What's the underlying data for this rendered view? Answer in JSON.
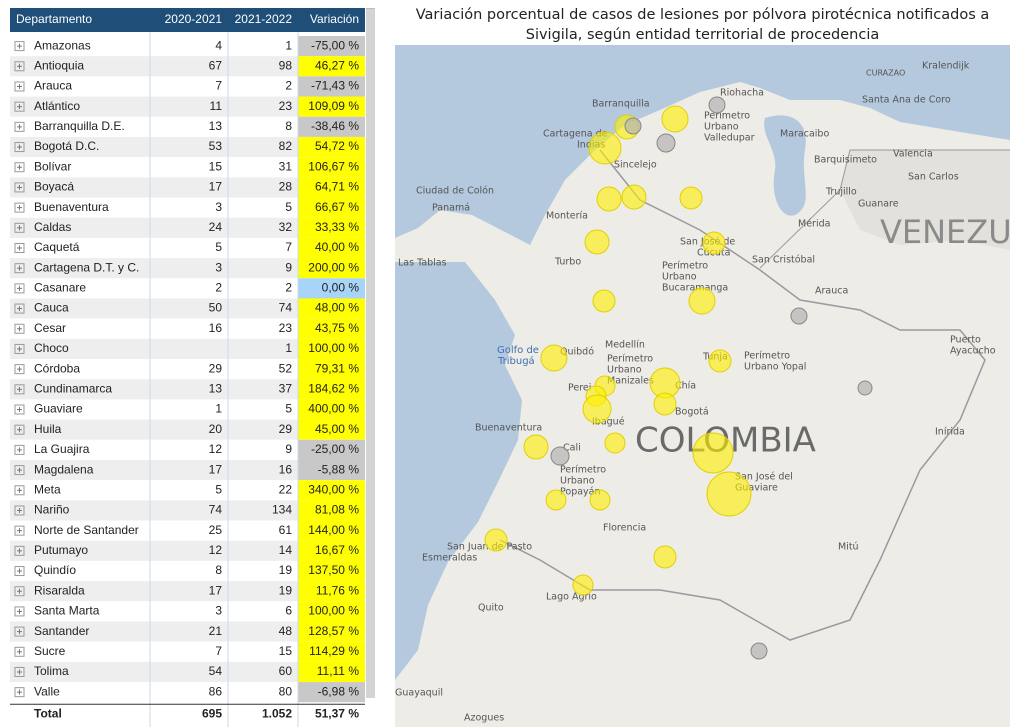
{
  "table": {
    "headers": [
      "Departamento",
      "2020-2021",
      "2021-2022",
      "Variación"
    ],
    "rows": [
      [
        "Amazonas",
        "4",
        "1",
        "-75,00 %"
      ],
      [
        "Antioquia",
        "67",
        "98",
        "46,27 %"
      ],
      [
        "Arauca",
        "7",
        "2",
        "-71,43 %"
      ],
      [
        "Atlántico",
        "11",
        "23",
        "109,09 %"
      ],
      [
        "Barranquilla D.E.",
        "13",
        "8",
        "-38,46 %"
      ],
      [
        "Bogotá D.C.",
        "53",
        "82",
        "54,72 %"
      ],
      [
        "Bolívar",
        "15",
        "31",
        "106,67 %"
      ],
      [
        "Boyacá",
        "17",
        "28",
        "64,71 %"
      ],
      [
        "Buenaventura",
        "3",
        "5",
        "66,67 %"
      ],
      [
        "Caldas",
        "24",
        "32",
        "33,33 %"
      ],
      [
        "Caquetá",
        "5",
        "7",
        "40,00 %"
      ],
      [
        "Cartagena D.T. y C.",
        "3",
        "9",
        "200,00 %"
      ],
      [
        "Casanare",
        "2",
        "2",
        "0,00 %"
      ],
      [
        "Cauca",
        "50",
        "74",
        "48,00 %"
      ],
      [
        "Cesar",
        "16",
        "23",
        "43,75 %"
      ],
      [
        "Choco",
        null,
        "1",
        "100,00 %"
      ],
      [
        "Córdoba",
        "29",
        "52",
        "79,31 %"
      ],
      [
        "Cundinamarca",
        "13",
        "37",
        "184,62 %"
      ],
      [
        "Guaviare",
        "1",
        "5",
        "400,00 %"
      ],
      [
        "Huila",
        "20",
        "29",
        "45,00 %"
      ],
      [
        "La Guajira",
        "12",
        "9",
        "-25,00 %"
      ],
      [
        "Magdalena",
        "17",
        "16",
        "-5,88 %"
      ],
      [
        "Meta",
        "5",
        "22",
        "340,00 %"
      ],
      [
        "Nariño",
        "74",
        "134",
        "81,08 %"
      ],
      [
        "Norte de Santander",
        "25",
        "61",
        "144,00 %"
      ],
      [
        "Putumayo",
        "12",
        "14",
        "16,67 %"
      ],
      [
        "Quindío",
        "8",
        "19",
        "137,50 %"
      ],
      [
        "Risaralda",
        "17",
        "19",
        "11,76 %"
      ],
      [
        "Santa Marta",
        "3",
        "6",
        "100,00 %"
      ],
      [
        "Santander",
        "21",
        "48",
        "128,57 %"
      ],
      [
        "Sucre",
        "7",
        "15",
        "114,29 %"
      ],
      [
        "Tolima",
        "54",
        "60",
        "11,11 %"
      ],
      [
        "Valle",
        "86",
        "80",
        "-6,98 %"
      ]
    ],
    "total": [
      "Total",
      "695",
      "1.052",
      "51,37 %"
    ]
  },
  "map": {
    "title": "Variación porcentual de casos de lesiones por pólvora pirotécnica notificados a Sivigila, según entidad territorial de procedencia",
    "labels": [
      "Riohacha",
      "CURAZAO",
      "Kralendijk",
      "Santa Ana de Coro",
      "Barranquilla",
      "Perímetro",
      "Urbano",
      "Valledupar",
      "Cartagena de",
      "Indias",
      "Maracaibo",
      "Barquisimeto",
      "Valencia",
      "San Carlos",
      "Trujillo",
      "Guanare",
      "Mérida",
      "Sincelejo",
      "Montería",
      "Ciudad de Colón",
      "Panamá",
      "VENEZU",
      "Las Tablas",
      "Turbo",
      "San José de",
      "Cúcuta",
      "San Cristóbal",
      "Perímetro",
      "Urbano",
      "Bucaramanga",
      "Arauca",
      "Golfo de",
      "Tribugá",
      "Quibdó",
      "Medellín",
      "Perímetro",
      "Urbano",
      "Manizales",
      "Tunja",
      "Perímetro",
      "Urbano Yopal",
      "Puerto",
      "Ayacucho",
      "Perei",
      "Chía",
      "Bogotá",
      "Ibagué",
      "Buenaventura",
      "Cali",
      "COLOMBIA",
      "Inírida",
      "Perímetro",
      "Urbano",
      "Popayán",
      "San José del",
      "Guaviare",
      "Florencia",
      "San Juan de Pasto",
      "Esmeraldas",
      "Mitú",
      "Lago Agrio",
      "Quito",
      "Guayaquil",
      "Azogues"
    ]
  }
}
